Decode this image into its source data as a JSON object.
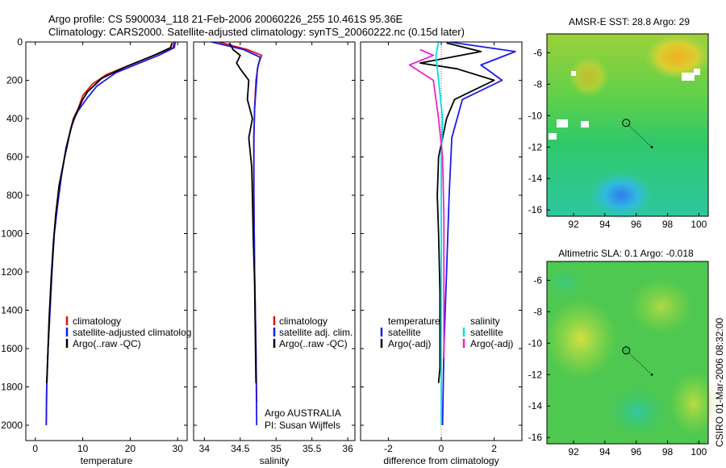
{
  "figure": {
    "title_line1": "Argo profile: CS 5900034_118 21-Feb-2006 20060226_255 10.461S 95.36E",
    "title_line2": "Climatology: CARS2000. Satellite-adjusted climatology: synTS_20060222.nc (0.15d later)",
    "footer_vertical": "CSIRO 01-Mar-2006 08:32:00",
    "argo_label": "Argo AUSTRALIA",
    "pi_label": "PI: Susan Wijffels"
  },
  "colors": {
    "climatology": "#dd1111",
    "satellite": "#1a1aee",
    "argo": "#000000",
    "salinity_sat": "#00e0e0",
    "salinity_argo": "#ee22cc"
  },
  "chart_data": [
    {
      "id": "temperature",
      "type": "line",
      "xlabel": "temperature",
      "ylabel": "",
      "xlim": [
        -2,
        32
      ],
      "ylim": [
        2080,
        0
      ],
      "xticks": [
        0,
        10,
        20,
        30
      ],
      "yticks": [
        0,
        200,
        400,
        600,
        800,
        1000,
        1200,
        1400,
        1600,
        1800,
        2000
      ],
      "legend": [
        "climatology",
        "satellite-adjusted climatolog",
        "Argo(..raw -QC)"
      ],
      "series": [
        {
          "name": "climatology",
          "color": "#dd1111",
          "points": [
            [
              29.2,
              0
            ],
            [
              29,
              30
            ],
            [
              26,
              60
            ],
            [
              20,
              120
            ],
            [
              15,
              170
            ],
            [
              12,
              220
            ],
            [
              10,
              280
            ],
            [
              9,
              350
            ],
            [
              8,
              400
            ],
            [
              6.5,
              550
            ],
            [
              5.5,
              700
            ],
            [
              4.7,
              850
            ],
            [
              4,
              1000
            ],
            [
              3.5,
              1200
            ],
            [
              3.1,
              1400
            ],
            [
              2.7,
              1600
            ],
            [
              2.4,
              1800
            ],
            [
              2.3,
              2000
            ]
          ]
        },
        {
          "name": "satellite",
          "color": "#1a1aee",
          "points": [
            [
              29.5,
              0
            ],
            [
              29.3,
              30
            ],
            [
              26,
              70
            ],
            [
              22,
              110
            ],
            [
              17,
              160
            ],
            [
              13,
              230
            ],
            [
              11,
              290
            ],
            [
              9,
              360
            ],
            [
              8,
              410
            ],
            [
              6.5,
              550
            ],
            [
              5.5,
              700
            ],
            [
              4.7,
              850
            ],
            [
              4,
              1000
            ],
            [
              3.5,
              1200
            ],
            [
              3.1,
              1400
            ],
            [
              2.7,
              1600
            ],
            [
              2.4,
              1800
            ],
            [
              2.3,
              2000
            ]
          ]
        },
        {
          "name": "Argo",
          "color": "#000000",
          "points": [
            [
              28.8,
              5
            ],
            [
              28.5,
              30
            ],
            [
              25,
              70
            ],
            [
              19,
              130
            ],
            [
              14,
              190
            ],
            [
              11,
              260
            ],
            [
              10,
              300
            ],
            [
              8.5,
              380
            ],
            [
              7.5,
              450
            ],
            [
              6.2,
              600
            ],
            [
              5,
              750
            ],
            [
              4.3,
              900
            ],
            [
              3.8,
              1050
            ],
            [
              3.3,
              1250
            ],
            [
              2.9,
              1450
            ],
            [
              2.6,
              1650
            ],
            [
              2.4,
              1780
            ]
          ]
        }
      ]
    },
    {
      "id": "salinity",
      "type": "line",
      "xlabel": "salinity",
      "ylabel": "",
      "xlim": [
        33.85,
        36.1
      ],
      "ylim": [
        2080,
        0
      ],
      "xticks": [
        34,
        34.5,
        35,
        35.5,
        36
      ],
      "xtick_labels": [
        "34",
        "34.5",
        "35",
        "35.5",
        "36"
      ],
      "legend": [
        "climatology",
        "satellite adj. clim.",
        "Argo(..raw -QC)"
      ],
      "series": [
        {
          "name": "climatology",
          "color": "#dd1111",
          "points": [
            [
              34.2,
              0
            ],
            [
              34.6,
              40
            ],
            [
              34.8,
              70
            ],
            [
              34.75,
              120
            ],
            [
              34.72,
              200
            ],
            [
              34.7,
              350
            ],
            [
              34.69,
              500
            ],
            [
              34.69,
              800
            ],
            [
              34.7,
              1200
            ],
            [
              34.72,
              1600
            ],
            [
              34.73,
              1880
            ]
          ]
        },
        {
          "name": "satellite",
          "color": "#1a1aee",
          "points": [
            [
              34.1,
              0
            ],
            [
              34.55,
              40
            ],
            [
              34.78,
              80
            ],
            [
              34.74,
              140
            ],
            [
              34.73,
              200
            ],
            [
              34.7,
              350
            ],
            [
              34.69,
              500
            ],
            [
              34.69,
              800
            ],
            [
              34.7,
              1200
            ],
            [
              34.72,
              1600
            ],
            [
              34.73,
              2000
            ]
          ]
        },
        {
          "name": "Argo",
          "color": "#000000",
          "points": [
            [
              34.35,
              5
            ],
            [
              34.4,
              40
            ],
            [
              34.5,
              70
            ],
            [
              34.45,
              110
            ],
            [
              34.5,
              140
            ],
            [
              34.62,
              200
            ],
            [
              34.6,
              300
            ],
            [
              34.67,
              400
            ],
            [
              34.62,
              500
            ],
            [
              34.66,
              650
            ],
            [
              34.67,
              800
            ],
            [
              34.68,
              1000
            ],
            [
              34.7,
              1250
            ],
            [
              34.71,
              1500
            ],
            [
              34.72,
              1780
            ]
          ]
        }
      ]
    },
    {
      "id": "difference",
      "type": "line",
      "xlabel": "difference from climatology",
      "ylabel": "",
      "xlim": [
        -3.05,
        3.05
      ],
      "ylim": [
        2080,
        0
      ],
      "xticks": [
        -2,
        0,
        2
      ],
      "legend_left_title": "temperature",
      "legend_right_title": "salinity",
      "legend": [
        "satellite",
        "Argo(-adj)",
        "satellite",
        "Argo(-adj)"
      ],
      "series": [
        {
          "name": "temperature satellite",
          "color": "#1a1aee",
          "points": [
            [
              0.3,
              0
            ],
            [
              2.8,
              50
            ],
            [
              1.5,
              120
            ],
            [
              2.3,
              200
            ],
            [
              0.8,
              300
            ],
            [
              0.4,
              500
            ],
            [
              0.3,
              800
            ],
            [
              0.2,
              1200
            ],
            [
              0.1,
              1600
            ],
            [
              0.05,
              2000
            ]
          ]
        },
        {
          "name": "temperature Argo",
          "color": "#000000",
          "points": [
            [
              0.2,
              5
            ],
            [
              1.5,
              50
            ],
            [
              -0.8,
              110
            ],
            [
              0.6,
              140
            ],
            [
              2.0,
              200
            ],
            [
              0.5,
              300
            ],
            [
              0.2,
              400
            ],
            [
              -0.1,
              600
            ],
            [
              -0.15,
              800
            ],
            [
              -0.1,
              1000
            ],
            [
              -0.05,
              1300
            ],
            [
              -0.05,
              1700
            ],
            [
              -0.1,
              1780
            ]
          ]
        },
        {
          "name": "salinity satellite",
          "color": "#00e0e0",
          "points": [
            [
              -0.1,
              0
            ],
            [
              -0.2,
              70
            ],
            [
              -0.1,
              200
            ],
            [
              0.05,
              400
            ],
            [
              0,
              600
            ],
            [
              0,
              1000
            ],
            [
              0,
              1500
            ],
            [
              0,
              2000
            ]
          ]
        },
        {
          "name": "salinity Argo",
          "color": "#ee22cc",
          "points": [
            [
              -0.8,
              40
            ],
            [
              -0.3,
              70
            ],
            [
              -1.2,
              120
            ],
            [
              -0.3,
              200
            ],
            [
              -0.1,
              400
            ],
            [
              0.05,
              600
            ],
            [
              0.1,
              900
            ],
            [
              0.1,
              1400
            ],
            [
              0.1,
              1650
            ]
          ]
        }
      ]
    },
    {
      "id": "sst_map",
      "type": "heatmap",
      "title": "AMSR-E SST: 28.8 Argo: 29",
      "xlim": [
        90.3,
        100.6
      ],
      "ylim": [
        -16.4,
        -4.8
      ],
      "xticks": [
        92,
        94,
        96,
        98,
        100
      ],
      "yticks": [
        -6,
        -8,
        -10,
        -12,
        -14,
        -16
      ],
      "profile_location": [
        95.36,
        -10.461
      ],
      "track_point": [
        97.0,
        -12.0
      ]
    },
    {
      "id": "sla_map",
      "type": "heatmap",
      "title": "Altimetric SLA: 0.1 Argo: -0.018",
      "xlim": [
        90.3,
        100.6
      ],
      "ylim": [
        -16.4,
        -4.8
      ],
      "xticks": [
        92,
        94,
        96,
        98,
        100
      ],
      "yticks": [
        -6,
        -8,
        -10,
        -12,
        -14,
        -16
      ],
      "profile_location": [
        95.36,
        -10.461
      ],
      "track_point": [
        97.0,
        -12.0
      ]
    }
  ]
}
